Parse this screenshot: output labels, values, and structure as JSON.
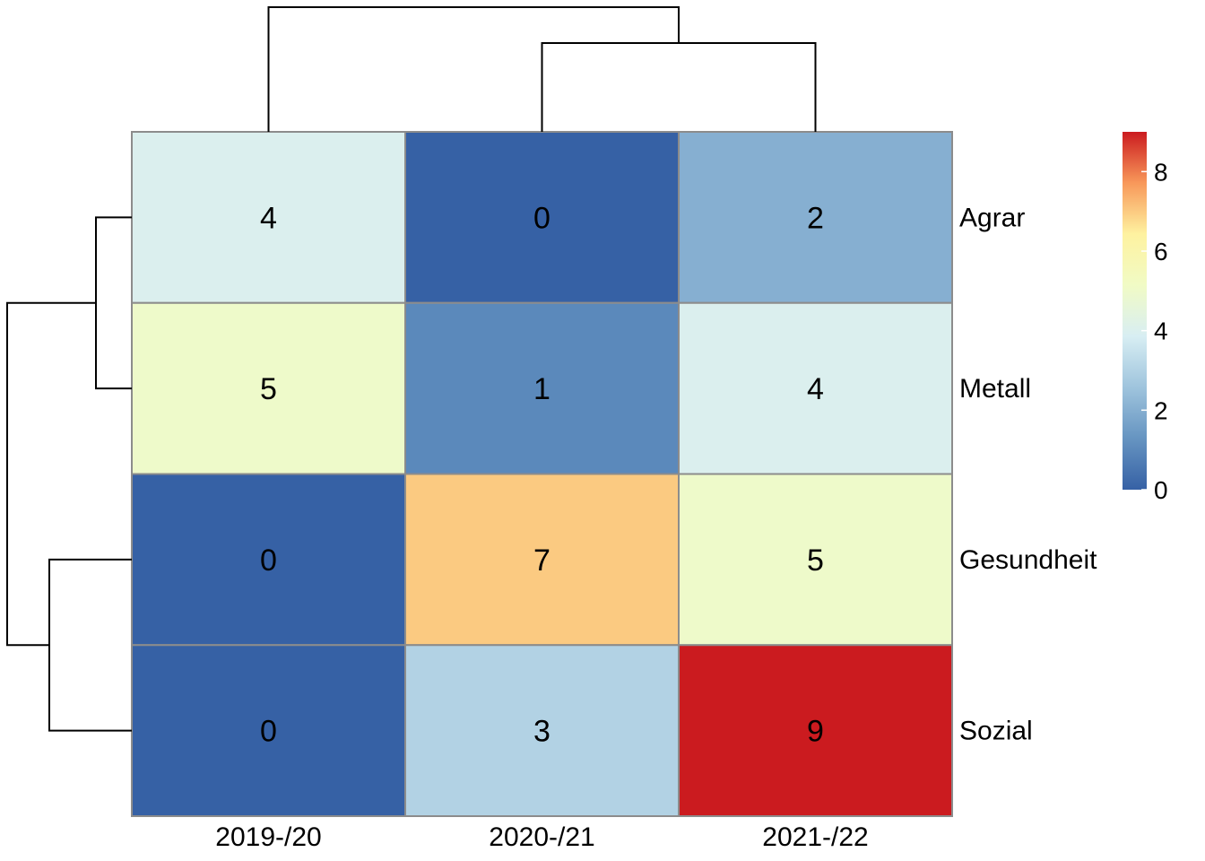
{
  "chart_data": {
    "type": "heatmap",
    "columns": [
      "2019-/20",
      "2020-/21",
      "2021-/22"
    ],
    "rows": [
      "Agrar",
      "Metall",
      "Gesundheit",
      "Sozial"
    ],
    "values": [
      [
        4,
        0,
        2
      ],
      [
        5,
        1,
        4
      ],
      [
        0,
        7,
        5
      ],
      [
        0,
        3,
        9
      ]
    ],
    "cell_labels": [
      [
        "4",
        "0",
        "2"
      ],
      [
        "5",
        "1",
        "4"
      ],
      [
        "0",
        "7",
        "5"
      ],
      [
        "0",
        "3",
        "9"
      ]
    ],
    "color_scale": {
      "range": [
        0,
        9
      ],
      "ticks": [
        "0",
        "2",
        "4",
        "6",
        "8"
      ],
      "colors": [
        "#3661a5",
        "#6694c1",
        "#9fc4dd",
        "#d8eef3",
        "#f1fbc5",
        "#fef2a0",
        "#f8985a",
        "#cb1b1f"
      ]
    },
    "column_dendrogram": true,
    "row_dendrogram": true,
    "legend_position": "right"
  }
}
